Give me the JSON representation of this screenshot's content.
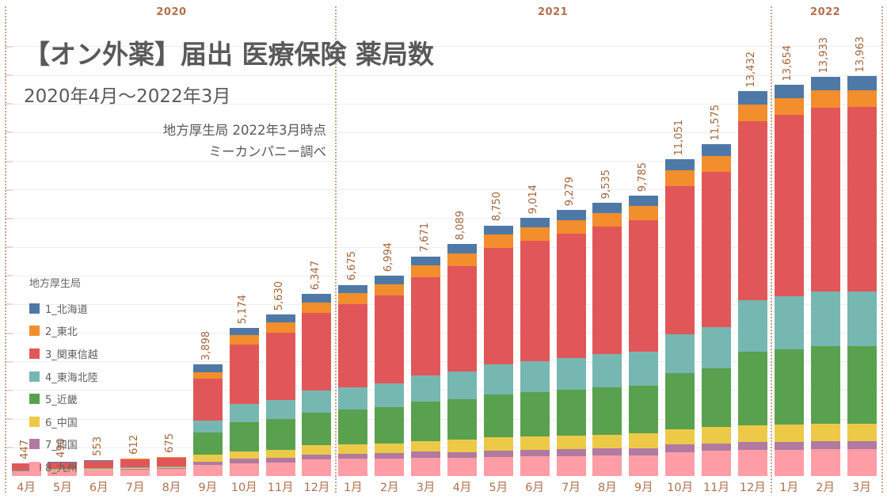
{
  "title": {
    "main": "【オン外薬】届出 医療保険 薬局数",
    "subtitle": "2020年4月～2022年3月"
  },
  "source_note": {
    "line1": "地方厚生局 2022年3月時点",
    "line2": "ミーカンパニー調べ"
  },
  "legend": {
    "title": "地方厚生局"
  },
  "colors": {
    "bar_total_label": "#a4653a",
    "axis_text": "#b1714e",
    "year_divider": "#c9906f",
    "gridline": "#ededed",
    "title_text": "#595959"
  },
  "chart_data": {
    "type": "bar",
    "stacked": true,
    "grid": true,
    "legend_position": "left",
    "title": "【オン外薬】届出 医療保険 薬局数",
    "subtitle": "2020年4月～2022年3月",
    "xlabel": "",
    "ylabel": "",
    "ylim": [
      0,
      14000
    ],
    "gridline_interval": 1000,
    "year_groups": [
      {
        "label": "2020",
        "count": 9
      },
      {
        "label": "2021",
        "count": 12
      },
      {
        "label": "2022",
        "count": 3
      }
    ],
    "categories": [
      "4月",
      "5月",
      "6月",
      "7月",
      "8月",
      "9月",
      "10月",
      "11月",
      "12月",
      "1月",
      "2月",
      "3月",
      "4月",
      "5月",
      "6月",
      "7月",
      "8月",
      "9月",
      "10月",
      "11月",
      "12月",
      "1月",
      "2月",
      "3月"
    ],
    "totals": [
      447,
      490,
      553,
      612,
      675,
      3898,
      5174,
      5630,
      6347,
      6675,
      6994,
      7671,
      8089,
      8750,
      9014,
      9279,
      9535,
      9785,
      11051,
      11575,
      13432,
      13654,
      13933,
      13963
    ],
    "series": [
      {
        "name": "1_北海道",
        "color": "#4e79a7",
        "values": [
          10,
          11,
          14,
          16,
          18,
          273,
          264,
          270,
          280,
          290,
          298,
          308,
          315,
          320,
          328,
          335,
          342,
          348,
          385,
          400,
          465,
          472,
          480,
          484
        ]
      },
      {
        "name": "2_東北",
        "color": "#f28e2b",
        "values": [
          5,
          6,
          7,
          8,
          9,
          227,
          330,
          350,
          370,
          385,
          400,
          425,
          440,
          458,
          470,
          482,
          494,
          505,
          540,
          560,
          580,
          585,
          592,
          594
        ]
      },
      {
        "name": "3_関東信越",
        "color": "#e15759",
        "values": [
          210,
          228,
          258,
          286,
          316,
          1458,
          2059,
          2350,
          2720,
          2890,
          3060,
          3430,
          3680,
          4063,
          4200,
          4330,
          4455,
          4578,
          5180,
          5430,
          6250,
          6330,
          6430,
          6442
        ]
      },
      {
        "name": "4_東海北陸",
        "color": "#76b7b2",
        "values": [
          10,
          11,
          13,
          14,
          16,
          410,
          643,
          680,
          760,
          800,
          840,
          920,
          970,
          1050,
          1085,
          1120,
          1155,
          1190,
          1360,
          1430,
          1800,
          1850,
          1900,
          1908
        ]
      },
      {
        "name": "5_近畿",
        "color": "#59a14f",
        "values": [
          15,
          17,
          20,
          22,
          24,
          773,
          1025,
          1060,
          1150,
          1200,
          1255,
          1360,
          1425,
          1508,
          1550,
          1595,
          1640,
          1684,
          1950,
          2050,
          2560,
          2620,
          2700,
          2710
        ]
      },
      {
        "name": "6_中国",
        "color": "#edc948",
        "values": [
          15,
          16,
          18,
          20,
          22,
          254,
          256,
          280,
          320,
          335,
          350,
          385,
          420,
          458,
          470,
          482,
          494,
          505,
          540,
          560,
          590,
          598,
          605,
          608
        ]
      },
      {
        "name": "7_四国",
        "color": "#b07aa1",
        "values": [
          12,
          13,
          14,
          15,
          17,
          128,
          157,
          160,
          167,
          175,
          181,
          198,
          209,
          228,
          231,
          235,
          240,
          245,
          256,
          265,
          272,
          274,
          276,
          277
        ]
      },
      {
        "name": "8_九州",
        "color": "#ff9da7",
        "values": [
          170,
          188,
          209,
          231,
          253,
          375,
          440,
          480,
          580,
          600,
          610,
          645,
          630,
          665,
          680,
          700,
          715,
          730,
          840,
          880,
          915,
          925,
          950,
          940
        ]
      }
    ]
  }
}
